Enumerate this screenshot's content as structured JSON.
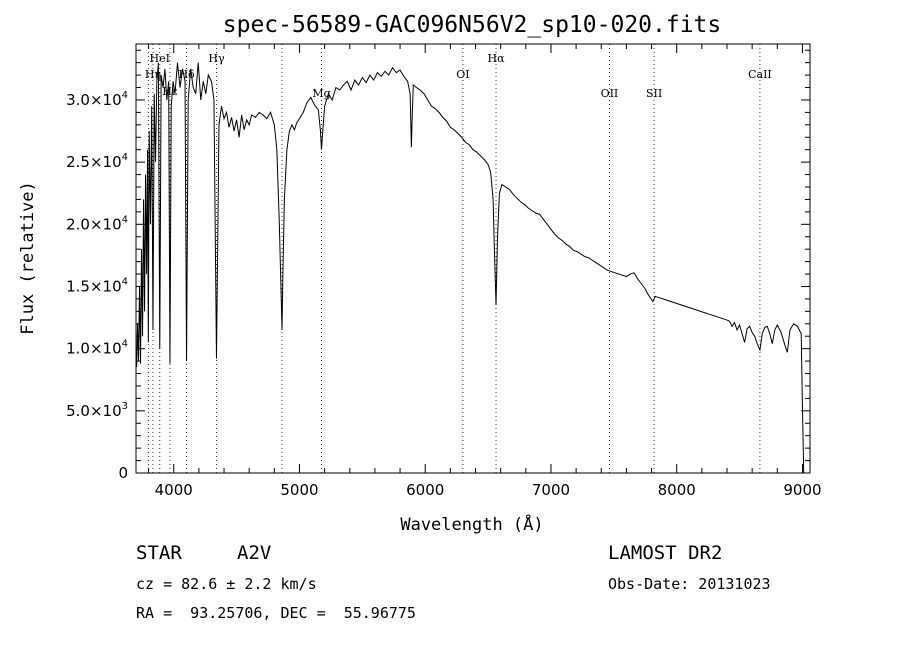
{
  "chart_data": {
    "type": "line",
    "title": "spec-56589-GAC096N56V2_sp10-020.fits",
    "xlabel": "Wavelength (Å)",
    "ylabel": "Flux (relative)",
    "xlim": [
      3700,
      9060
    ],
    "ylim": [
      0,
      34500
    ],
    "xticks": [
      {
        "value": 4000,
        "label": "4000"
      },
      {
        "value": 5000,
        "label": "5000"
      },
      {
        "value": 6000,
        "label": "6000"
      },
      {
        "value": 7000,
        "label": "7000"
      },
      {
        "value": 8000,
        "label": "8000"
      },
      {
        "value": 9000,
        "label": "9000"
      }
    ],
    "yticks": [
      {
        "value": 0,
        "label": "0",
        "mant": "0",
        "exp": ""
      },
      {
        "value": 5000,
        "label": "5.0×10³",
        "mant": "5.0×10",
        "exp": "3"
      },
      {
        "value": 10000,
        "label": "1.0×10⁴",
        "mant": "1.0×10",
        "exp": "4"
      },
      {
        "value": 15000,
        "label": "1.5×10⁴",
        "mant": "1.5×10",
        "exp": "4"
      },
      {
        "value": 20000,
        "label": "2.0×10⁴",
        "mant": "2.0×10",
        "exp": "4"
      },
      {
        "value": 25000,
        "label": "2.5×10⁴",
        "mant": "2.5×10",
        "exp": "4"
      },
      {
        "value": 30000,
        "label": "3.0×10⁴",
        "mant": "3.0×10",
        "exp": "4"
      }
    ],
    "line_labels": [
      {
        "label": "HeI",
        "wave": 3889
      },
      {
        "label": "Hη",
        "wave": 3835
      },
      {
        "label": "Hε",
        "wave": 3970
      },
      {
        "label": "Hδ",
        "wave": 4102
      },
      {
        "label": "Hγ",
        "wave": 4340
      },
      {
        "label": "Mg",
        "wave": 5175
      },
      {
        "label": "OI",
        "wave": 6300
      },
      {
        "label": "Hα",
        "wave": 6563
      },
      {
        "label": "OII",
        "wave": 7465
      },
      {
        "label": "SII",
        "wave": 7820
      },
      {
        "label": "CaII",
        "wave": 8662
      }
    ],
    "dotted_lines": [
      3798,
      3835,
      3889,
      3970,
      4102,
      4340,
      4861,
      5175,
      6300,
      6563,
      7465,
      7820,
      8662
    ],
    "grid": false,
    "series": [
      {
        "color": "#000000",
        "points": [
          [
            3705,
            8500
          ],
          [
            3712,
            12000
          ],
          [
            3720,
            9000
          ],
          [
            3728,
            15000
          ],
          [
            3736,
            8800
          ],
          [
            3744,
            18000
          ],
          [
            3752,
            11000
          ],
          [
            3760,
            22000
          ],
          [
            3768,
            13000
          ],
          [
            3776,
            24000
          ],
          [
            3784,
            16000
          ],
          [
            3792,
            26000
          ],
          [
            3798,
            10500
          ],
          [
            3805,
            27500
          ],
          [
            3815,
            20000
          ],
          [
            3825,
            29500
          ],
          [
            3835,
            11500
          ],
          [
            3845,
            30500
          ],
          [
            3855,
            25000
          ],
          [
            3866,
            31500
          ],
          [
            3878,
            33000
          ],
          [
            3889,
            10000
          ],
          [
            3900,
            32000
          ],
          [
            3915,
            31000
          ],
          [
            3930,
            32500
          ],
          [
            3945,
            30000
          ],
          [
            3960,
            31500
          ],
          [
            3970,
            8800
          ],
          [
            3980,
            29500
          ],
          [
            3995,
            31500
          ],
          [
            4010,
            30500
          ],
          [
            4030,
            33000
          ],
          [
            4050,
            31000
          ],
          [
            4070,
            32500
          ],
          [
            4090,
            31500
          ],
          [
            4102,
            9000
          ],
          [
            4115,
            30000
          ],
          [
            4135,
            32500
          ],
          [
            4155,
            31000
          ],
          [
            4175,
            30500
          ],
          [
            4195,
            33000
          ],
          [
            4215,
            30000
          ],
          [
            4235,
            31500
          ],
          [
            4255,
            30500
          ],
          [
            4275,
            32000
          ],
          [
            4300,
            31500
          ],
          [
            4320,
            30000
          ],
          [
            4340,
            9200
          ],
          [
            4360,
            28000
          ],
          [
            4380,
            29500
          ],
          [
            4400,
            28500
          ],
          [
            4420,
            29000
          ],
          [
            4440,
            27800
          ],
          [
            4460,
            28600
          ],
          [
            4480,
            27500
          ],
          [
            4500,
            28400
          ],
          [
            4520,
            27000
          ],
          [
            4540,
            28800
          ],
          [
            4560,
            27600
          ],
          [
            4580,
            28400
          ],
          [
            4600,
            28000
          ],
          [
            4620,
            28800
          ],
          [
            4650,
            28600
          ],
          [
            4680,
            29000
          ],
          [
            4710,
            28800
          ],
          [
            4740,
            28500
          ],
          [
            4770,
            29000
          ],
          [
            4800,
            28000
          ],
          [
            4820,
            26000
          ],
          [
            4840,
            20000
          ],
          [
            4855,
            14000
          ],
          [
            4861,
            11500
          ],
          [
            4868,
            16000
          ],
          [
            4880,
            22000
          ],
          [
            4900,
            26000
          ],
          [
            4920,
            27500
          ],
          [
            4940,
            28000
          ],
          [
            4960,
            27600
          ],
          [
            4980,
            28200
          ],
          [
            5000,
            28500
          ],
          [
            5030,
            29000
          ],
          [
            5060,
            29800
          ],
          [
            5090,
            30200
          ],
          [
            5120,
            29600
          ],
          [
            5150,
            29200
          ],
          [
            5167,
            27500
          ],
          [
            5175,
            26000
          ],
          [
            5183,
            27200
          ],
          [
            5200,
            29500
          ],
          [
            5230,
            30500
          ],
          [
            5260,
            30000
          ],
          [
            5290,
            31000
          ],
          [
            5320,
            30800
          ],
          [
            5350,
            31200
          ],
          [
            5380,
            31500
          ],
          [
            5410,
            30800
          ],
          [
            5440,
            31600
          ],
          [
            5470,
            31200
          ],
          [
            5500,
            31800
          ],
          [
            5530,
            31400
          ],
          [
            5560,
            32000
          ],
          [
            5590,
            31600
          ],
          [
            5620,
            32200
          ],
          [
            5650,
            31900
          ],
          [
            5680,
            32300
          ],
          [
            5710,
            32000
          ],
          [
            5740,
            32600
          ],
          [
            5770,
            32200
          ],
          [
            5800,
            32400
          ],
          [
            5830,
            31900
          ],
          [
            5860,
            31500
          ],
          [
            5880,
            30500
          ],
          [
            5890,
            26200
          ],
          [
            5896,
            28500
          ],
          [
            5905,
            31200
          ],
          [
            5930,
            31000
          ],
          [
            5960,
            30800
          ],
          [
            5990,
            30500
          ],
          [
            6020,
            30000
          ],
          [
            6050,
            29500
          ],
          [
            6080,
            29300
          ],
          [
            6110,
            29000
          ],
          [
            6140,
            28600
          ],
          [
            6170,
            28300
          ],
          [
            6200,
            27800
          ],
          [
            6230,
            27600
          ],
          [
            6260,
            27300
          ],
          [
            6290,
            27000
          ],
          [
            6320,
            26600
          ],
          [
            6350,
            26400
          ],
          [
            6380,
            26000
          ],
          [
            6410,
            25800
          ],
          [
            6440,
            25500
          ],
          [
            6470,
            25200
          ],
          [
            6500,
            24800
          ],
          [
            6520,
            24200
          ],
          [
            6540,
            22000
          ],
          [
            6550,
            18000
          ],
          [
            6563,
            13500
          ],
          [
            6575,
            19000
          ],
          [
            6590,
            22500
          ],
          [
            6610,
            23200
          ],
          [
            6640,
            23000
          ],
          [
            6670,
            22800
          ],
          [
            6700,
            22400
          ],
          [
            6730,
            22100
          ],
          [
            6760,
            21800
          ],
          [
            6790,
            21600
          ],
          [
            6820,
            21300
          ],
          [
            6850,
            21100
          ],
          [
            6880,
            20900
          ],
          [
            6910,
            20800
          ],
          [
            6940,
            20400
          ],
          [
            6970,
            20000
          ],
          [
            7000,
            19600
          ],
          [
            7030,
            19200
          ],
          [
            7060,
            18900
          ],
          [
            7090,
            18700
          ],
          [
            7120,
            18400
          ],
          [
            7150,
            18200
          ],
          [
            7180,
            17900
          ],
          [
            7210,
            17800
          ],
          [
            7240,
            17600
          ],
          [
            7270,
            17400
          ],
          [
            7300,
            17300
          ],
          [
            7330,
            17100
          ],
          [
            7360,
            16900
          ],
          [
            7390,
            16700
          ],
          [
            7420,
            16500
          ],
          [
            7450,
            16300
          ],
          [
            7480,
            16200
          ],
          [
            7510,
            16100
          ],
          [
            7540,
            16000
          ],
          [
            7570,
            15900
          ],
          [
            7600,
            15800
          ],
          [
            7630,
            16000
          ],
          [
            7660,
            16100
          ],
          [
            7690,
            15600
          ],
          [
            7720,
            15200
          ],
          [
            7750,
            14800
          ],
          [
            7770,
            14400
          ],
          [
            7790,
            14100
          ],
          [
            7810,
            13800
          ],
          [
            7830,
            14200
          ],
          [
            7860,
            14100
          ],
          [
            7890,
            14000
          ],
          [
            7920,
            13900
          ],
          [
            7950,
            13800
          ],
          [
            7980,
            13700
          ],
          [
            8010,
            13600
          ],
          [
            8040,
            13500
          ],
          [
            8070,
            13400
          ],
          [
            8100,
            13300
          ],
          [
            8130,
            13200
          ],
          [
            8160,
            13100
          ],
          [
            8190,
            13000
          ],
          [
            8220,
            12900
          ],
          [
            8250,
            12800
          ],
          [
            8280,
            12700
          ],
          [
            8310,
            12600
          ],
          [
            8340,
            12500
          ],
          [
            8370,
            12400
          ],
          [
            8400,
            12300
          ],
          [
            8420,
            12200
          ],
          [
            8440,
            11800
          ],
          [
            8460,
            12100
          ],
          [
            8480,
            11500
          ],
          [
            8500,
            11900
          ],
          [
            8520,
            11200
          ],
          [
            8540,
            10500
          ],
          [
            8560,
            11600
          ],
          [
            8580,
            11800
          ],
          [
            8600,
            11300
          ],
          [
            8620,
            11000
          ],
          [
            8640,
            10400
          ],
          [
            8662,
            9900
          ],
          [
            8680,
            11200
          ],
          [
            8700,
            11700
          ],
          [
            8720,
            11800
          ],
          [
            8740,
            11200
          ],
          [
            8760,
            10400
          ],
          [
            8780,
            11500
          ],
          [
            8800,
            11900
          ],
          [
            8830,
            11300
          ],
          [
            8860,
            10300
          ],
          [
            8880,
            9700
          ],
          [
            8900,
            11500
          ],
          [
            8930,
            12000
          ],
          [
            8960,
            11800
          ],
          [
            8990,
            11200
          ],
          [
            9000,
            5200
          ],
          [
            9010,
            0
          ]
        ]
      }
    ]
  },
  "footer": {
    "left_line1_a": "STAR",
    "left_line1_b": "A2V",
    "cz_line": "cz = 82.6 ± 2.2 km/s",
    "ra_dec_line": "RA =  93.25706, DEC =  55.96775",
    "right_line1": "LAMOST DR2",
    "obs_date": "Obs-Date: 20131023"
  }
}
